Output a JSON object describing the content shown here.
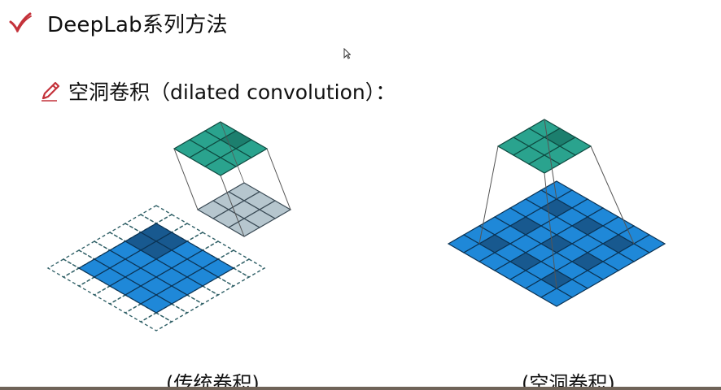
{
  "slide": {
    "title": "DeepLab系列方法",
    "subtitle": "空洞卷积（dilated convolution）：",
    "captions": {
      "standard": "(传统卷积)",
      "dilated": "(空洞卷积)"
    },
    "icons": {
      "title_icon": "checkmark-icon",
      "subtitle_icon": "pencil-icon",
      "cursor_icon": "mouse-cursor-icon"
    },
    "colors": {
      "kernel_fill": "#2aa38e",
      "input_fill": "#1f88d8",
      "highlight_fill": "#18598f",
      "shadow_fill": "#9eb3bd",
      "check": "#c4323a",
      "pencil": "#c4323a",
      "rule": "#6f6358"
    }
  }
}
